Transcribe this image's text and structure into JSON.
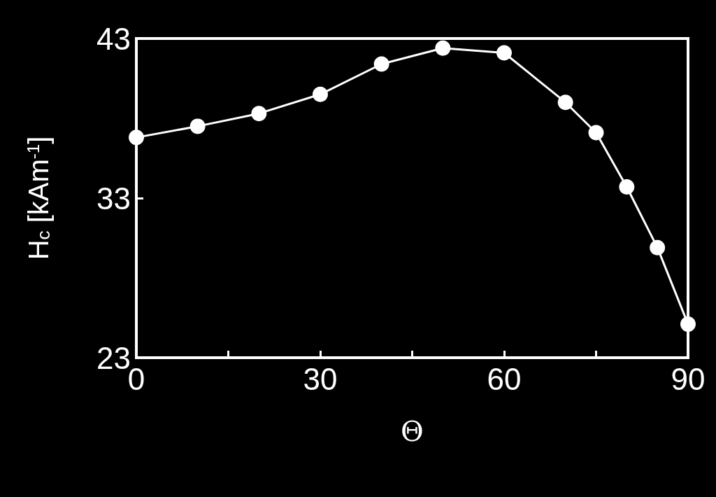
{
  "chart_data": {
    "type": "line",
    "xlabel": "Θ",
    "ylabel": "H$_{c}$ [kAm$^{-1}$]",
    "x": [
      0,
      10,
      20,
      30,
      40,
      50,
      60,
      70,
      75,
      80,
      85,
      90
    ],
    "series": [
      {
        "color": "#ffffff",
        "values": [
          36.8,
          37.5,
          38.3,
          39.5,
          41.4,
          42.4,
          42.1,
          39.0,
          37.1,
          33.7,
          29.9,
          25.1
        ]
      }
    ],
    "xlim": [
      0,
      90
    ],
    "xticks": [
      0,
      {
        "value": 15,
        "label": null
      },
      30,
      {
        "value": 45,
        "label": null
      },
      60,
      {
        "value": 75,
        "label": null
      },
      90
    ],
    "ylim": [
      23,
      43
    ],
    "yticks": [
      23,
      33,
      43
    ],
    "marker": "circle",
    "line_style": "solid",
    "grid": false
  }
}
